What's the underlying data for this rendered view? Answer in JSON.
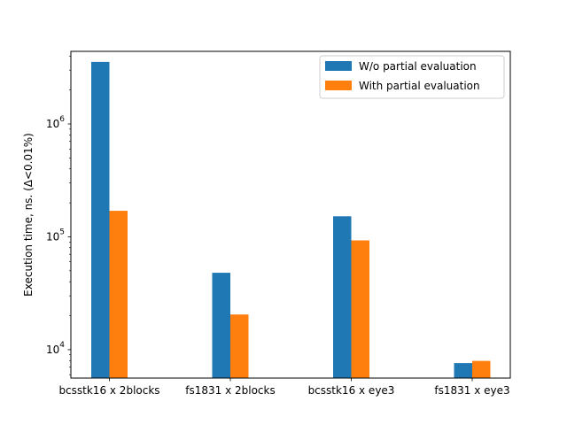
{
  "chart_data": {
    "type": "bar",
    "title": "",
    "xlabel": "",
    "ylabel": "Execution time, ns. (Δ<0.01%)",
    "yscale": "log",
    "ylim": [
      5600,
      4400000
    ],
    "yticks": [
      {
        "value": 10000,
        "base": "10",
        "exp": "4"
      },
      {
        "value": 100000,
        "base": "10",
        "exp": "5"
      },
      {
        "value": 1000000,
        "base": "10",
        "exp": "6"
      }
    ],
    "categories": [
      "bcsstk16 x 2blocks",
      "fs1831 x 2blocks",
      "bcsstk16 x eye3",
      "fs1831 x eye3"
    ],
    "series": [
      {
        "name": "W/o partial evaluation",
        "color": "#1f77b4",
        "values": [
          3550000,
          48000,
          152000,
          7600
        ]
      },
      {
        "name": "With partial evaluation",
        "color": "#ff7f0e",
        "values": [
          170000,
          20500,
          93000,
          7950
        ]
      }
    ],
    "legend": "top-right",
    "grid": false
  }
}
